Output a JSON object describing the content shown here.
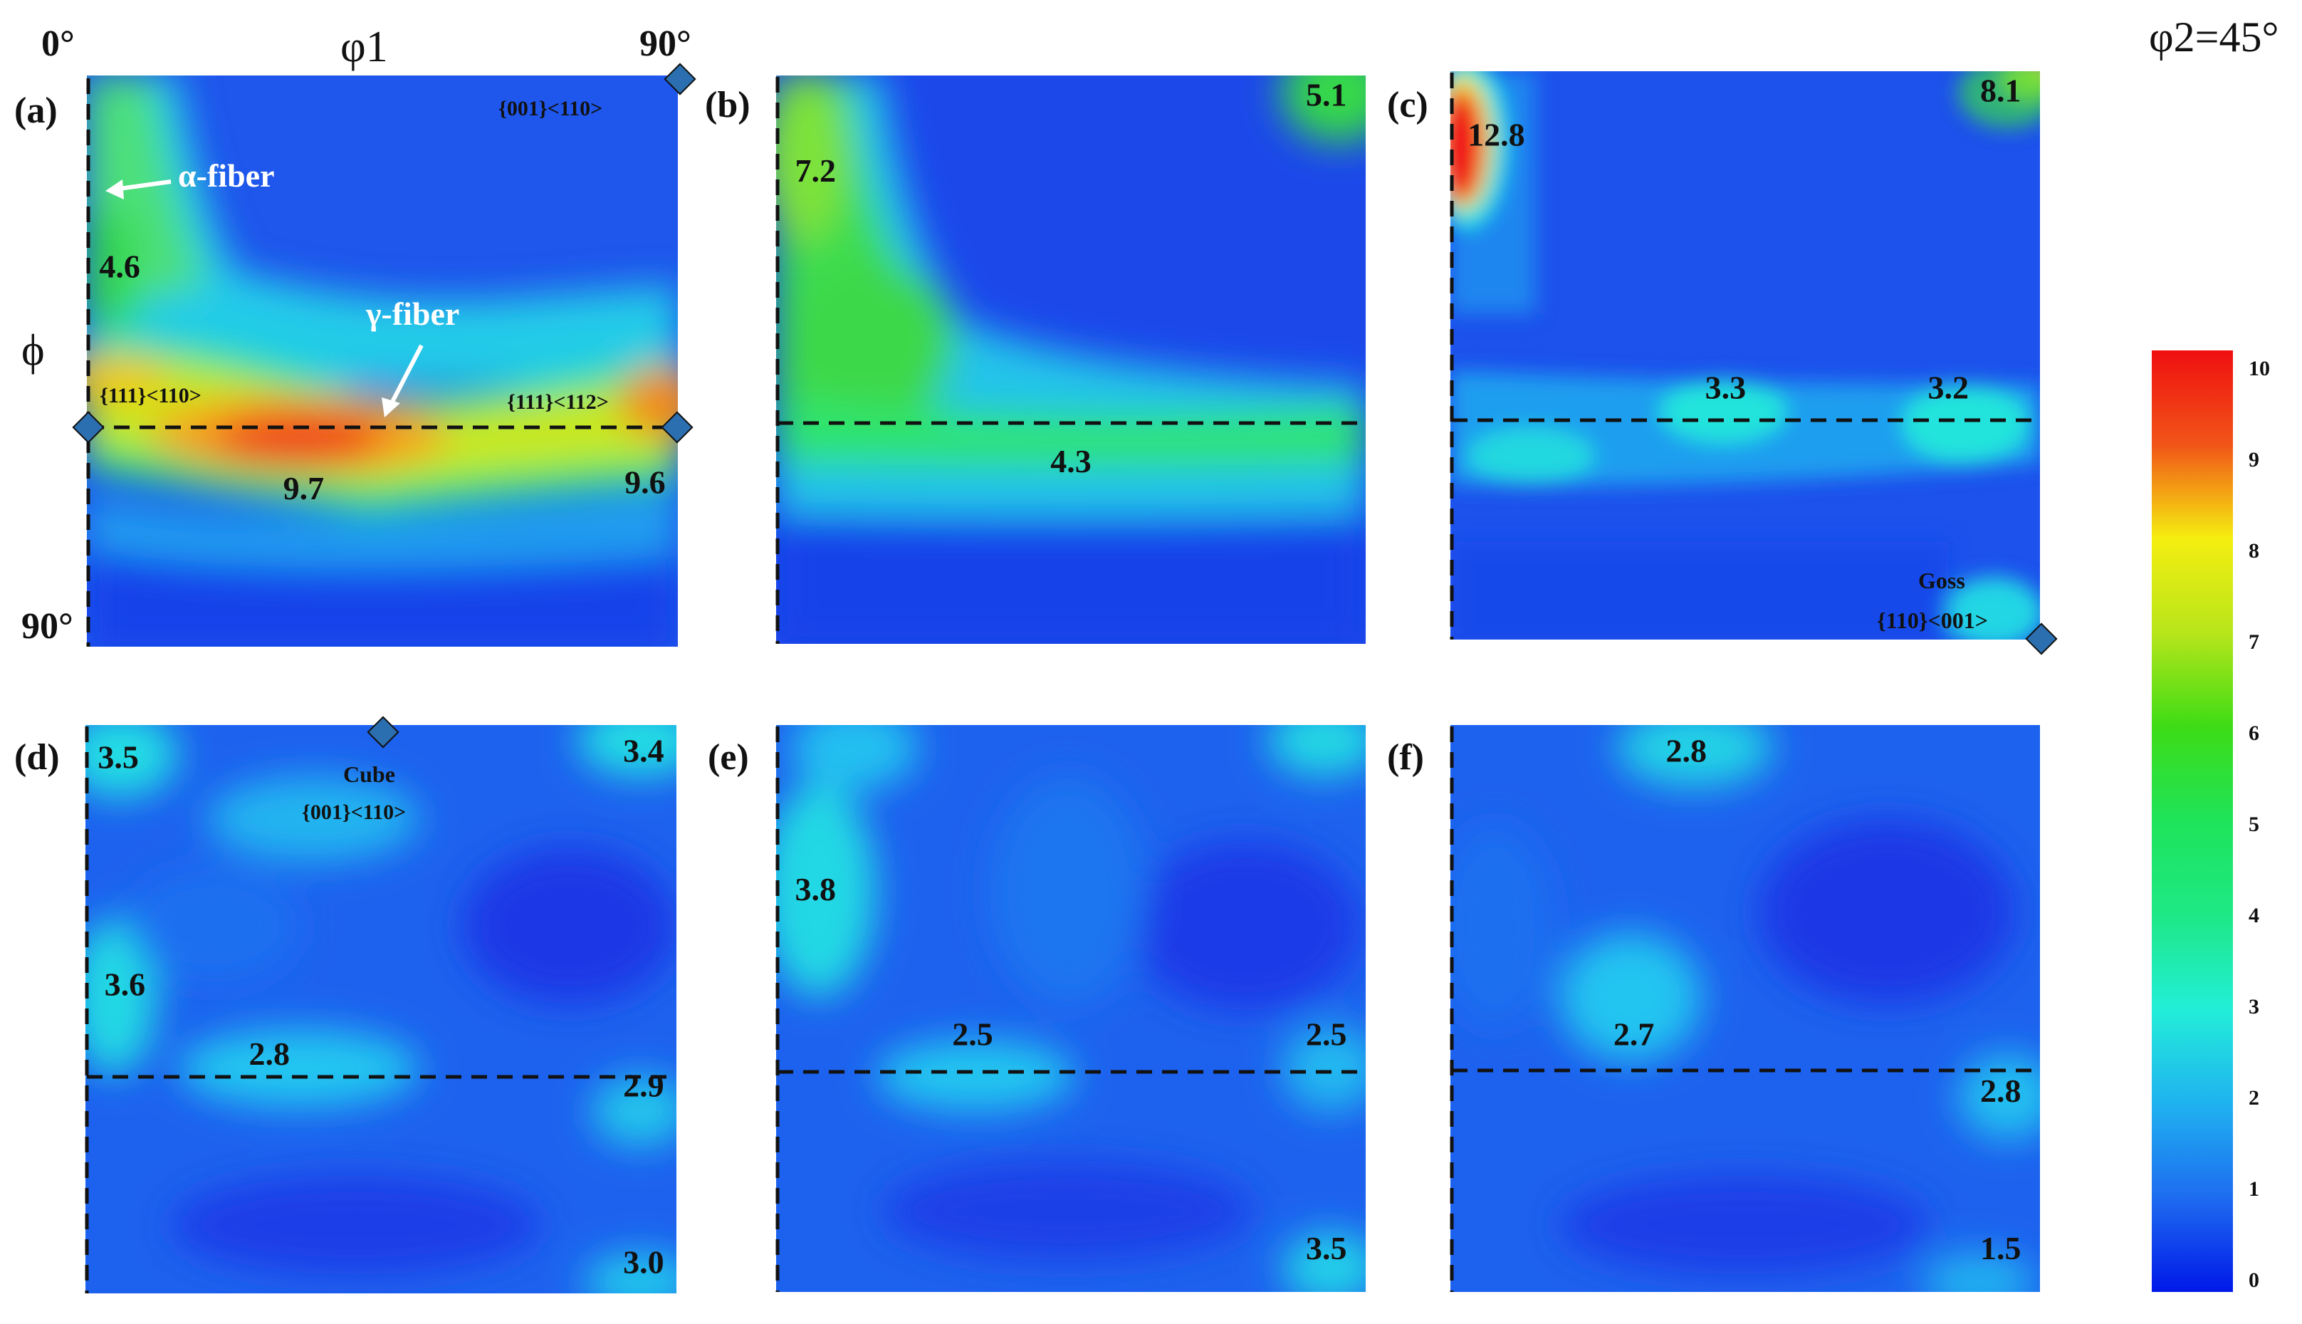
{
  "figure": {
    "phi2_label": "φ2=45°",
    "axis": {
      "phi1_label": "φ1",
      "phi_label": "ϕ",
      "phi1_start": "0°",
      "phi1_end": "90°",
      "phi_end": "90°"
    },
    "annotations": {
      "alpha_fiber": "α-fiber",
      "gamma_fiber": "γ-fiber",
      "ori_001_110": "{001}<110>",
      "ori_111_110": "{111}<110>",
      "ori_111_112": "{111}<112>",
      "goss_name": "Goss",
      "goss_ori": "{110}<001>",
      "cube_name": "Cube",
      "cube_ori": "{001}<110>"
    },
    "colors": {
      "palette": [
        "#0018e8",
        "#1e6cf0",
        "#1fb2f0",
        "#22eed8",
        "#1ee35a",
        "#3ddc16",
        "#b7e51a",
        "#f5ee10",
        "#fba819",
        "#f15518",
        "#ef0f10"
      ],
      "marker": "#2b6fb0"
    }
  },
  "chart_data": [
    {
      "type": "heatmap",
      "panel": "(a)",
      "xlim": [
        0,
        90
      ],
      "ylim": [
        0,
        90
      ],
      "xlabel": "φ1",
      "ylabel": "ϕ",
      "peak_labels": [
        {
          "value": "4.6",
          "x": 5,
          "y": 30
        },
        {
          "value": "9.7",
          "x": 33,
          "y": 65
        },
        {
          "value": "9.6",
          "x": 85,
          "y": 64
        }
      ]
    },
    {
      "type": "heatmap",
      "panel": "(b)",
      "xlim": [
        0,
        90
      ],
      "ylim": [
        0,
        90
      ],
      "peak_labels": [
        {
          "value": "7.2",
          "x": 6,
          "y": 15
        },
        {
          "value": "5.1",
          "x": 84,
          "y": 3
        },
        {
          "value": "4.3",
          "x": 45,
          "y": 61
        }
      ]
    },
    {
      "type": "heatmap",
      "panel": "(c)",
      "xlim": [
        0,
        90
      ],
      "ylim": [
        0,
        90
      ],
      "peak_labels": [
        {
          "value": "12.8",
          "x": 7,
          "y": 10
        },
        {
          "value": "8.1",
          "x": 84,
          "y": 3
        },
        {
          "value": "3.3",
          "x": 42,
          "y": 50
        },
        {
          "value": "3.2",
          "x": 76,
          "y": 50
        }
      ]
    },
    {
      "type": "heatmap",
      "panel": "(d)",
      "xlim": [
        0,
        90
      ],
      "ylim": [
        0,
        90
      ],
      "peak_labels": [
        {
          "value": "3.5",
          "x": 5,
          "y": 5
        },
        {
          "value": "3.4",
          "x": 85,
          "y": 4
        },
        {
          "value": "3.6",
          "x": 6,
          "y": 41
        },
        {
          "value": "2.8",
          "x": 28,
          "y": 52
        },
        {
          "value": "2.9",
          "x": 85,
          "y": 57
        },
        {
          "value": "3.0",
          "x": 85,
          "y": 85
        }
      ]
    },
    {
      "type": "heatmap",
      "panel": "(e)",
      "xlim": [
        0,
        90
      ],
      "ylim": [
        0,
        90
      ],
      "peak_labels": [
        {
          "value": "3.8",
          "x": 6,
          "y": 26
        },
        {
          "value": "2.5",
          "x": 30,
          "y": 49
        },
        {
          "value": "2.5",
          "x": 84,
          "y": 49
        },
        {
          "value": "3.5",
          "x": 84,
          "y": 83
        }
      ]
    },
    {
      "type": "heatmap",
      "panel": "(f)",
      "xlim": [
        0,
        90
      ],
      "ylim": [
        0,
        90
      ],
      "peak_labels": [
        {
          "value": "2.8",
          "x": 36,
          "y": 4
        },
        {
          "value": "2.7",
          "x": 28,
          "y": 49
        },
        {
          "value": "2.8",
          "x": 84,
          "y": 58
        },
        {
          "value": "1.5",
          "x": 84,
          "y": 83
        }
      ]
    },
    {
      "type": "colorbar",
      "ylim": [
        0,
        10
      ],
      "ticks": [
        "0",
        "1",
        "2",
        "3",
        "4",
        "5",
        "6",
        "7",
        "8",
        "9",
        "10"
      ]
    }
  ]
}
